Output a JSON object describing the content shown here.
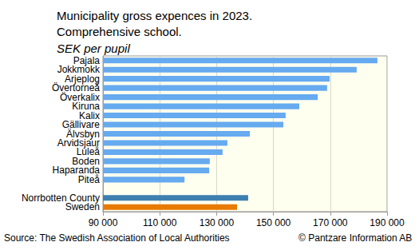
{
  "chart_data": {
    "type": "bar",
    "orientation": "horizontal",
    "title": "Municipality gross expences in 2023.\nComprehensive school.",
    "subtitle": "SEK per pupil",
    "annotations": [
      "Source: The Swedish Association of Local Authorities",
      "© Pantzare Information AB"
    ],
    "categories": [
      "Pajala",
      "Jokkmokk",
      "Arjeplog",
      "Övertorneå",
      "Överkalix",
      "Kiruna",
      "Kalix",
      "Gällivare",
      "Älvsbyn",
      "Arvidsjaur",
      "Luleå",
      "Boden",
      "Haparanda",
      "Piteå",
      null,
      "Norrbotten County",
      "Sweden"
    ],
    "values": [
      186600,
      179300,
      169800,
      168900,
      165600,
      159100,
      154300,
      153500,
      141700,
      133800,
      132100,
      127600,
      127400,
      118700,
      null,
      141100,
      137200
    ],
    "colors": [
      "#66aaf0",
      "#66aaf0",
      "#66aaf0",
      "#66aaf0",
      "#66aaf0",
      "#66aaf0",
      "#66aaf0",
      "#66aaf0",
      "#66aaf0",
      "#66aaf0",
      "#66aaf0",
      "#66aaf0",
      "#66aaf0",
      "#66aaf0",
      null,
      "#3d7fb0",
      "#e87a00"
    ],
    "xlim": [
      90000,
      190000
    ],
    "xticks": [
      {
        "value": 90000,
        "label": "90 000"
      },
      {
        "value": 110000,
        "label": "110 000"
      },
      {
        "value": 130000,
        "label": "130 000"
      },
      {
        "value": 150000,
        "label": "150 000"
      },
      {
        "value": 170000,
        "label": "170 000"
      },
      {
        "value": 190000,
        "label": "190 000"
      }
    ],
    "grid": true
  }
}
